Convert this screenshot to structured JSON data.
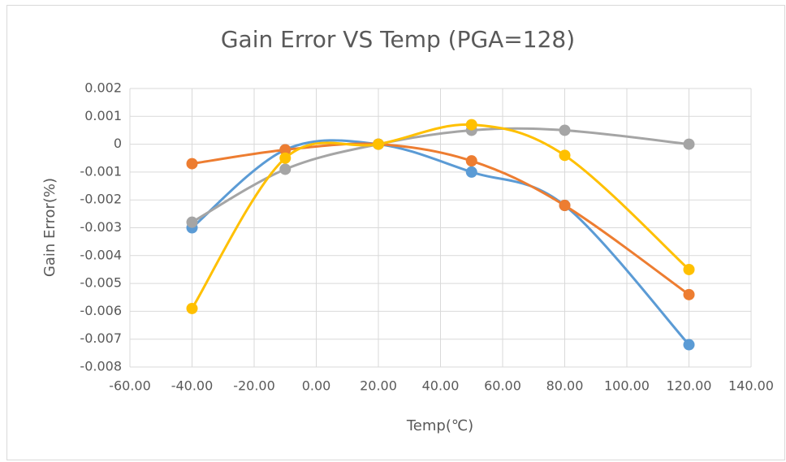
{
  "chart_data": {
    "type": "scatter",
    "title": "Gain Error VS Temp (PGA=128)",
    "x_label": "Temp(℃)",
    "y_label": "Gain Error(%)",
    "x": [
      -40,
      -10,
      20,
      50,
      80,
      120
    ],
    "series": [
      {
        "color": "#5b9bd5",
        "values": [
          -0.003,
          -0.0002,
          0,
          -0.001,
          -0.0022,
          -0.0072
        ]
      },
      {
        "color": "#ed7d31",
        "values": [
          -0.0007,
          -0.0002,
          0,
          -0.0006,
          -0.0022,
          -0.0054
        ]
      },
      {
        "color": "#a5a5a5",
        "values": [
          -0.0028,
          -0.0009,
          0,
          0.0005,
          0.0005,
          0
        ]
      },
      {
        "color": "#ffc000",
        "values": [
          -0.0059,
          -0.0005,
          0,
          0.0007,
          -0.0004,
          -0.0045
        ]
      }
    ],
    "xlim": [
      -60,
      140
    ],
    "xticks": [
      {
        "value": -60,
        "label": "-60.00"
      },
      {
        "value": -40,
        "label": "-40.00"
      },
      {
        "value": -20,
        "label": "-20.00"
      },
      {
        "value": 0,
        "label": "0.00"
      },
      {
        "value": 20,
        "label": "20.00"
      },
      {
        "value": 40,
        "label": "40.00"
      },
      {
        "value": 60,
        "label": "60.00"
      },
      {
        "value": 80,
        "label": "80.00"
      },
      {
        "value": 100,
        "label": "100.00"
      },
      {
        "value": 120,
        "label": "120.00"
      },
      {
        "value": 140,
        "label": "140.00"
      }
    ],
    "ylim": [
      -0.008,
      0.002
    ],
    "yticks": [
      -0.008,
      -0.007,
      -0.006,
      -0.005,
      -0.004,
      -0.003,
      -0.002,
      -0.001,
      0,
      0.001,
      0.002
    ],
    "grid": true,
    "smooth": true
  }
}
